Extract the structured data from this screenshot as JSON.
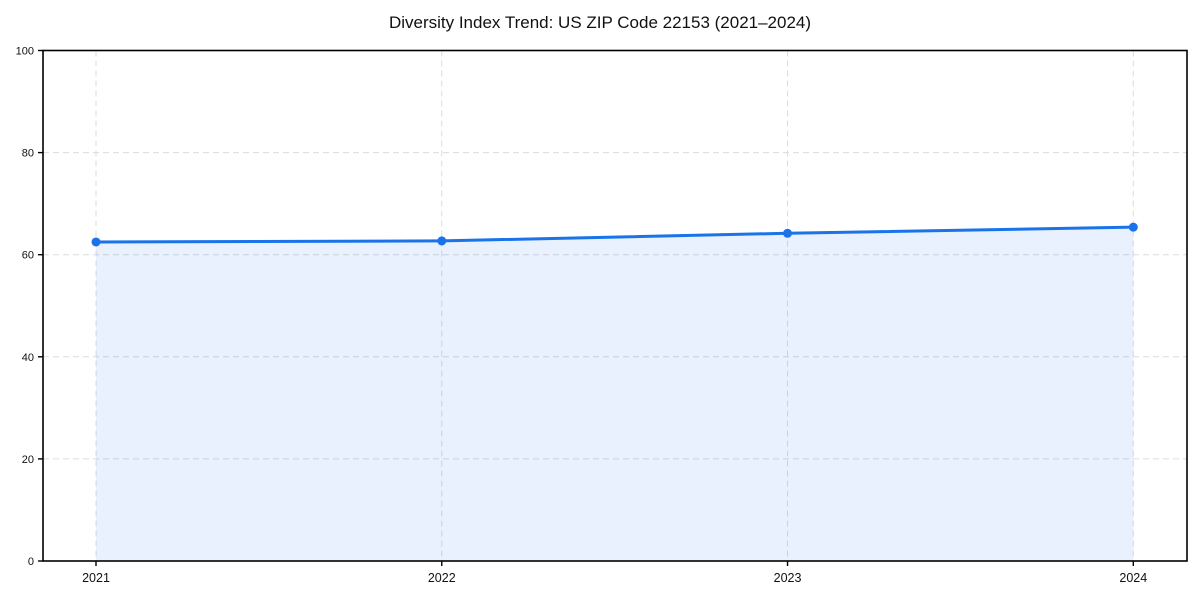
{
  "page": {
    "background": "#ffffff"
  },
  "chart_data": {
    "type": "line",
    "title": "Diversity Index Trend: US ZIP Code 22153 (2021–2024)",
    "x": [
      "2021",
      "2022",
      "2023",
      "2024"
    ],
    "series": [
      {
        "name": "Diversity Index",
        "values": [
          62.5,
          62.7,
          64.2,
          65.4
        ]
      }
    ],
    "xlabel": "",
    "ylabel": "",
    "ylim": [
      0,
      100
    ],
    "yticks": [
      0,
      20,
      40,
      60,
      80,
      100
    ],
    "grid": true,
    "grid_style": "dashed",
    "legend": false,
    "area_fill": true,
    "colors": {
      "line": "#1a73e8",
      "marker": "#1a73e8",
      "fill": "rgba(26,115,232,0.10)",
      "grid": "#dcdcdc",
      "axis": "#000000",
      "tick_label": "#111111"
    }
  }
}
